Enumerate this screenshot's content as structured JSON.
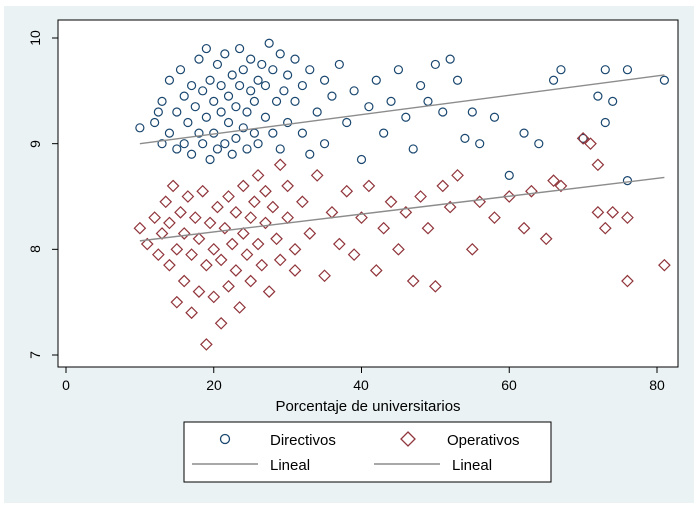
{
  "chart_data": {
    "type": "scatter",
    "xlabel": "Porcentaje de universitarios",
    "ylabel": "",
    "xlim": [
      0,
      82
    ],
    "ylim": [
      6.85,
      10.15
    ],
    "xticks": [
      "0",
      "20",
      "40",
      "60",
      "80"
    ],
    "yticks": [
      "7",
      "8",
      "9",
      "10"
    ],
    "grid": false,
    "legend_position": "bottom",
    "legend": [
      "Directivos",
      "Operativos",
      "Lineal",
      "Lineal"
    ],
    "series": [
      {
        "name": "Directivos",
        "marker": "circle",
        "color": "#1a476f",
        "points": [
          [
            10,
            9.15
          ],
          [
            12,
            9.2
          ],
          [
            12.5,
            9.3
          ],
          [
            13,
            9.0
          ],
          [
            13,
            9.4
          ],
          [
            14,
            9.1
          ],
          [
            14,
            9.6
          ],
          [
            15,
            8.95
          ],
          [
            15,
            9.3
          ],
          [
            15.5,
            9.7
          ],
          [
            16,
            9.0
          ],
          [
            16,
            9.45
          ],
          [
            16.5,
            9.2
          ],
          [
            17,
            9.55
          ],
          [
            17,
            8.9
          ],
          [
            17.5,
            9.35
          ],
          [
            18,
            9.1
          ],
          [
            18,
            9.8
          ],
          [
            18.5,
            9.0
          ],
          [
            18.5,
            9.5
          ],
          [
            19,
            9.25
          ],
          [
            19,
            9.9
          ],
          [
            19.5,
            8.85
          ],
          [
            19.5,
            9.6
          ],
          [
            20,
            9.1
          ],
          [
            20,
            9.4
          ],
          [
            20.5,
            9.75
          ],
          [
            20.5,
            8.95
          ],
          [
            21,
            9.3
          ],
          [
            21,
            9.55
          ],
          [
            21.5,
            9.0
          ],
          [
            21.5,
            9.85
          ],
          [
            22,
            9.2
          ],
          [
            22,
            9.45
          ],
          [
            22.5,
            9.65
          ],
          [
            22.5,
            8.9
          ],
          [
            23,
            9.35
          ],
          [
            23,
            9.05
          ],
          [
            23.5,
            9.55
          ],
          [
            23.5,
            9.9
          ],
          [
            24,
            9.15
          ],
          [
            24,
            9.7
          ],
          [
            24.5,
            9.3
          ],
          [
            24.5,
            8.95
          ],
          [
            25,
            9.5
          ],
          [
            25,
            9.8
          ],
          [
            25.5,
            9.1
          ],
          [
            25.5,
            9.4
          ],
          [
            26,
            9.6
          ],
          [
            26,
            9.0
          ],
          [
            26.5,
            9.75
          ],
          [
            27,
            9.25
          ],
          [
            27,
            9.55
          ],
          [
            27.5,
            9.95
          ],
          [
            28,
            9.1
          ],
          [
            28,
            9.7
          ],
          [
            28.5,
            9.4
          ],
          [
            29,
            9.85
          ],
          [
            29,
            8.95
          ],
          [
            29.5,
            9.5
          ],
          [
            30,
            9.2
          ],
          [
            30,
            9.65
          ],
          [
            31,
            9.4
          ],
          [
            31,
            9.8
          ],
          [
            32,
            9.1
          ],
          [
            32,
            9.55
          ],
          [
            33,
            9.7
          ],
          [
            33,
            8.9
          ],
          [
            34,
            9.3
          ],
          [
            35,
            9.6
          ],
          [
            35,
            9.0
          ],
          [
            36,
            9.45
          ],
          [
            37,
            9.75
          ],
          [
            38,
            9.2
          ],
          [
            39,
            9.5
          ],
          [
            40,
            8.85
          ],
          [
            41,
            9.35
          ],
          [
            42,
            9.6
          ],
          [
            43,
            9.1
          ],
          [
            44,
            9.4
          ],
          [
            45,
            9.7
          ],
          [
            46,
            9.25
          ],
          [
            47,
            8.95
          ],
          [
            48,
            9.55
          ],
          [
            49,
            9.4
          ],
          [
            50,
            9.75
          ],
          [
            51,
            9.3
          ],
          [
            52,
            9.8
          ],
          [
            53,
            9.6
          ],
          [
            54,
            9.05
          ],
          [
            55,
            9.3
          ],
          [
            56,
            9.0
          ],
          [
            58,
            9.25
          ],
          [
            60,
            8.7
          ],
          [
            62,
            9.1
          ],
          [
            64,
            9.0
          ],
          [
            66,
            9.6
          ],
          [
            67,
            9.7
          ],
          [
            70,
            9.05
          ],
          [
            72,
            9.45
          ],
          [
            73,
            9.2
          ],
          [
            73,
            9.7
          ],
          [
            74,
            9.4
          ],
          [
            76,
            9.7
          ],
          [
            76,
            8.65
          ],
          [
            81,
            9.6
          ]
        ]
      },
      {
        "name": "Operativos",
        "marker": "diamond",
        "color": "#90353b",
        "points": [
          [
            10,
            8.2
          ],
          [
            11,
            8.05
          ],
          [
            12,
            8.3
          ],
          [
            12.5,
            7.95
          ],
          [
            13,
            8.15
          ],
          [
            13.5,
            8.45
          ],
          [
            14,
            7.85
          ],
          [
            14,
            8.25
          ],
          [
            14.5,
            8.6
          ],
          [
            15,
            7.5
          ],
          [
            15,
            8.0
          ],
          [
            15.5,
            8.35
          ],
          [
            16,
            7.7
          ],
          [
            16,
            8.15
          ],
          [
            16.5,
            8.5
          ],
          [
            17,
            7.4
          ],
          [
            17,
            7.95
          ],
          [
            17.5,
            8.3
          ],
          [
            18,
            7.6
          ],
          [
            18,
            8.1
          ],
          [
            18.5,
            8.55
          ],
          [
            19,
            7.1
          ],
          [
            19,
            7.85
          ],
          [
            19.5,
            8.25
          ],
          [
            20,
            7.55
          ],
          [
            20,
            8.0
          ],
          [
            20.5,
            8.4
          ],
          [
            21,
            7.3
          ],
          [
            21,
            7.9
          ],
          [
            21.5,
            8.2
          ],
          [
            22,
            7.65
          ],
          [
            22,
            8.5
          ],
          [
            22.5,
            8.05
          ],
          [
            23,
            7.8
          ],
          [
            23,
            8.35
          ],
          [
            23.5,
            7.45
          ],
          [
            24,
            8.15
          ],
          [
            24,
            8.6
          ],
          [
            24.5,
            7.95
          ],
          [
            25,
            8.3
          ],
          [
            25,
            7.7
          ],
          [
            25.5,
            8.45
          ],
          [
            26,
            8.05
          ],
          [
            26,
            8.7
          ],
          [
            26.5,
            7.85
          ],
          [
            27,
            8.25
          ],
          [
            27,
            8.55
          ],
          [
            27.5,
            7.6
          ],
          [
            28,
            8.4
          ],
          [
            28.5,
            8.1
          ],
          [
            29,
            8.8
          ],
          [
            29,
            7.9
          ],
          [
            30,
            8.3
          ],
          [
            30,
            8.6
          ],
          [
            31,
            8.0
          ],
          [
            31,
            7.8
          ],
          [
            32,
            8.45
          ],
          [
            33,
            8.15
          ],
          [
            34,
            8.7
          ],
          [
            35,
            7.75
          ],
          [
            36,
            8.35
          ],
          [
            37,
            8.05
          ],
          [
            38,
            8.55
          ],
          [
            39,
            7.95
          ],
          [
            40,
            8.3
          ],
          [
            41,
            8.6
          ],
          [
            42,
            7.8
          ],
          [
            43,
            8.2
          ],
          [
            44,
            8.45
          ],
          [
            45,
            8.0
          ],
          [
            46,
            8.35
          ],
          [
            47,
            7.7
          ],
          [
            48,
            8.5
          ],
          [
            49,
            8.2
          ],
          [
            50,
            7.65
          ],
          [
            51,
            8.6
          ],
          [
            52,
            8.4
          ],
          [
            53,
            8.7
          ],
          [
            55,
            8.0
          ],
          [
            56,
            8.45
          ],
          [
            58,
            8.3
          ],
          [
            60,
            8.5
          ],
          [
            62,
            8.2
          ],
          [
            63,
            8.55
          ],
          [
            65,
            8.1
          ],
          [
            66,
            8.65
          ],
          [
            67,
            8.6
          ],
          [
            70,
            9.05
          ],
          [
            71,
            9.0
          ],
          [
            72,
            8.8
          ],
          [
            72,
            8.35
          ],
          [
            73,
            8.2
          ],
          [
            74,
            8.35
          ],
          [
            76,
            7.7
          ],
          [
            76,
            8.3
          ],
          [
            81,
            7.85
          ]
        ]
      },
      {
        "name": "Lineal",
        "type": "line",
        "color": "#8c8c8c",
        "x": [
          10,
          81
        ],
        "y": [
          9.0,
          9.65
        ]
      },
      {
        "name": "Lineal",
        "type": "line",
        "color": "#8c8c8c",
        "x": [
          10,
          81
        ],
        "y": [
          8.08,
          8.68
        ]
      }
    ]
  }
}
